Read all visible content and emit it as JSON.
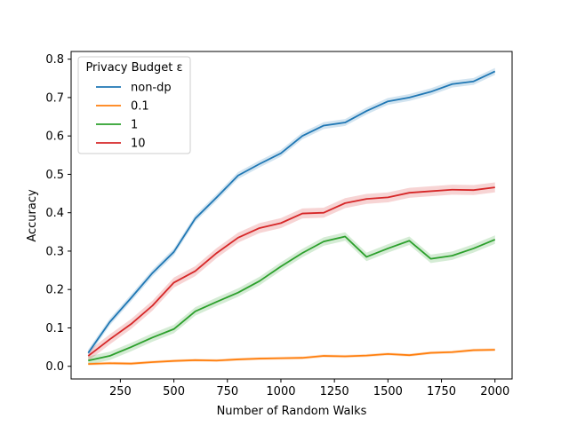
{
  "chart_data": {
    "type": "line",
    "title": "",
    "xlabel": "Number of Random Walks",
    "ylabel": "Accuracy",
    "xlim": [
      20,
      2080
    ],
    "ylim": [
      -0.033,
      0.82
    ],
    "xticks": [
      250,
      500,
      750,
      1000,
      1250,
      1500,
      1750,
      2000
    ],
    "xtick_labels": [
      "250",
      "500",
      "750",
      "1000",
      "1250",
      "1500",
      "1750",
      "2000"
    ],
    "yticks": [
      0.0,
      0.1,
      0.2,
      0.3,
      0.4,
      0.5,
      0.6,
      0.7,
      0.8
    ],
    "ytick_labels": [
      "0.0",
      "0.1",
      "0.2",
      "0.3",
      "0.4",
      "0.5",
      "0.6",
      "0.7",
      "0.8"
    ],
    "grid": false,
    "legend": {
      "title": "Privacy Budget ε",
      "position": "top-left"
    },
    "x": [
      100,
      200,
      300,
      400,
      500,
      600,
      700,
      800,
      900,
      1000,
      1100,
      1200,
      1300,
      1400,
      1500,
      1600,
      1700,
      1800,
      1900,
      2000
    ],
    "series": [
      {
        "name": "non-dp",
        "color": "#1f77b4",
        "values": [
          0.035,
          0.115,
          0.178,
          0.243,
          0.298,
          0.385,
          0.44,
          0.497,
          0.527,
          0.555,
          0.6,
          0.627,
          0.635,
          0.665,
          0.69,
          0.7,
          0.715,
          0.735,
          0.742,
          0.768
        ],
        "band": 0.009
      },
      {
        "name": "0.1",
        "color": "#ff7f0e",
        "values": [
          0.006,
          0.008,
          0.007,
          0.011,
          0.014,
          0.016,
          0.015,
          0.018,
          0.02,
          0.021,
          0.022,
          0.027,
          0.026,
          0.028,
          0.032,
          0.029,
          0.035,
          0.037,
          0.042,
          0.043
        ],
        "band": 0.004
      },
      {
        "name": "1",
        "color": "#2ca02c",
        "values": [
          0.015,
          0.027,
          0.05,
          0.075,
          0.097,
          0.143,
          0.168,
          0.192,
          0.222,
          0.26,
          0.295,
          0.325,
          0.338,
          0.285,
          0.307,
          0.327,
          0.28,
          0.288,
          0.307,
          0.33
        ],
        "band": 0.011
      },
      {
        "name": "10",
        "color": "#d62728",
        "values": [
          0.027,
          0.07,
          0.11,
          0.158,
          0.218,
          0.248,
          0.295,
          0.335,
          0.36,
          0.373,
          0.398,
          0.4,
          0.425,
          0.436,
          0.44,
          0.452,
          0.456,
          0.46,
          0.459,
          0.466
        ],
        "band": 0.013
      }
    ]
  }
}
